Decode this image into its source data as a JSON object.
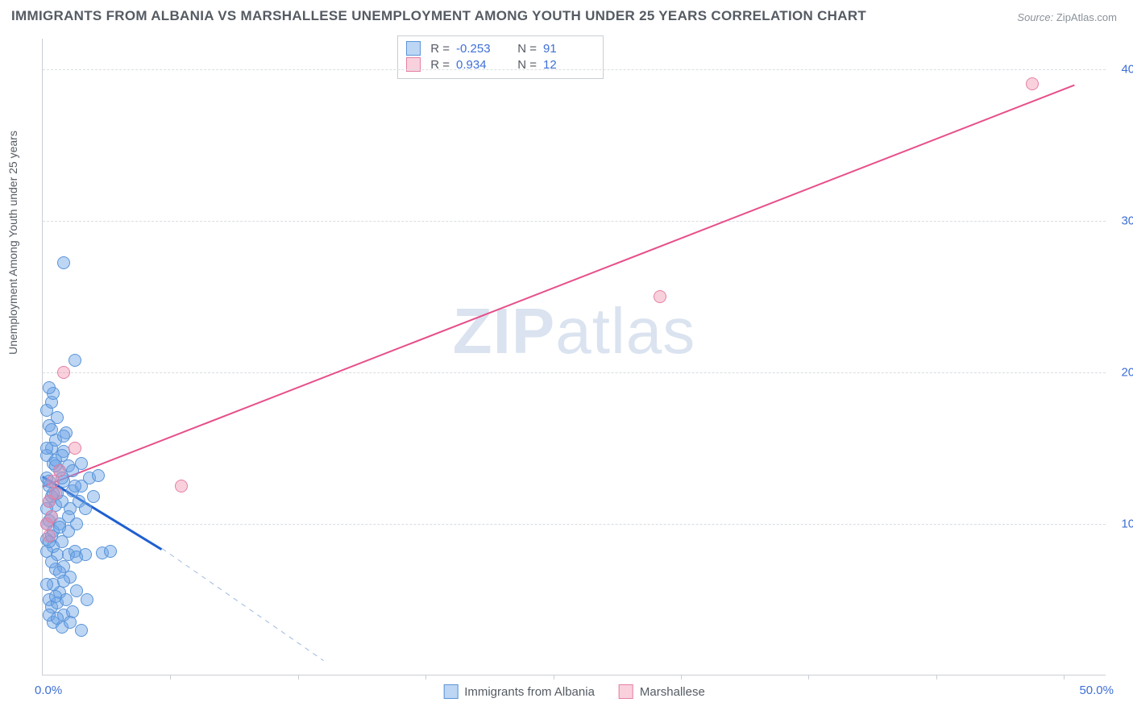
{
  "title": "IMMIGRANTS FROM ALBANIA VS MARSHALLESE UNEMPLOYMENT AMONG YOUTH UNDER 25 YEARS CORRELATION CHART",
  "source_label": "Source:",
  "source_name": "ZipAtlas.com",
  "ylabel": "Unemployment Among Youth under 25 years",
  "watermark_a": "ZIP",
  "watermark_b": "atlas",
  "chart": {
    "type": "scatter-correlation",
    "background_color": "#ffffff",
    "grid_color": "#d8dde2",
    "axis_color": "#c9ced4",
    "tick_color": "#3e6fd6",
    "xlim": [
      0,
      50
    ],
    "ylim": [
      0,
      42
    ],
    "y_ticks": [
      10,
      20,
      30,
      40
    ],
    "y_tick_labels": [
      "10.0%",
      "20.0%",
      "30.0%",
      "40.0%"
    ],
    "x_origin_label": "0.0%",
    "x_end_label": "50.0%",
    "x_minor_ticks": [
      6,
      12,
      18,
      24,
      30,
      36,
      42,
      48
    ],
    "series": [
      {
        "name": "Immigrants from Albania",
        "color_fill": "rgba(108,163,230,0.45)",
        "color_stroke": "#5a94d8",
        "R": "-0.253",
        "N": "91",
        "trend": {
          "x1": 0,
          "y1": 13.2,
          "x2": 5.6,
          "y2": 8.4,
          "color": "#1f5fd0",
          "width": 2.5,
          "dash": false
        },
        "trend_ext": {
          "x1": 5.6,
          "y1": 8.4,
          "x2": 13.2,
          "y2": 1.0,
          "color": "#9cb9e0",
          "width": 1.2,
          "dash": true
        },
        "points": [
          [
            0.2,
            13.0
          ],
          [
            0.3,
            12.5
          ],
          [
            0.4,
            11.8
          ],
          [
            0.5,
            14.0
          ],
          [
            0.3,
            10.2
          ],
          [
            0.6,
            11.2
          ],
          [
            0.8,
            13.5
          ],
          [
            0.4,
            15.0
          ],
          [
            0.2,
            9.0
          ],
          [
            0.5,
            8.5
          ],
          [
            0.7,
            8.0
          ],
          [
            1.0,
            14.8
          ],
          [
            1.2,
            13.8
          ],
          [
            1.4,
            12.2
          ],
          [
            0.9,
            11.5
          ],
          [
            0.3,
            16.5
          ],
          [
            0.2,
            17.5
          ],
          [
            0.4,
            18.0
          ],
          [
            0.5,
            18.6
          ],
          [
            0.3,
            19.0
          ],
          [
            1.8,
            14.0
          ],
          [
            2.2,
            13.0
          ],
          [
            2.6,
            13.2
          ],
          [
            1.5,
            8.2
          ],
          [
            2.0,
            8.0
          ],
          [
            2.8,
            8.1
          ],
          [
            3.2,
            8.2
          ],
          [
            0.6,
            7.0
          ],
          [
            1.0,
            7.2
          ],
          [
            1.3,
            6.5
          ],
          [
            0.8,
            5.5
          ],
          [
            1.6,
            5.6
          ],
          [
            2.1,
            5.0
          ],
          [
            1.0,
            4.0
          ],
          [
            1.4,
            4.2
          ],
          [
            0.5,
            3.5
          ],
          [
            0.9,
            3.2
          ],
          [
            1.8,
            3.0
          ],
          [
            1.2,
            9.5
          ],
          [
            1.6,
            10.0
          ],
          [
            0.2,
            11.0
          ],
          [
            0.7,
            12.0
          ],
          [
            0.3,
            12.8
          ],
          [
            0.6,
            13.8
          ],
          [
            0.9,
            14.5
          ],
          [
            1.1,
            16.0
          ],
          [
            0.4,
            10.5
          ],
          [
            0.8,
            10.0
          ],
          [
            1.3,
            11.0
          ],
          [
            1.7,
            11.5
          ],
          [
            2.4,
            11.8
          ],
          [
            0.2,
            8.2
          ],
          [
            0.5,
            6.0
          ],
          [
            0.3,
            5.0
          ],
          [
            0.4,
            4.5
          ],
          [
            0.7,
            4.8
          ],
          [
            1.5,
            20.8
          ],
          [
            1.0,
            27.2
          ],
          [
            0.2,
            14.5
          ],
          [
            0.6,
            15.5
          ],
          [
            1.0,
            12.8
          ],
          [
            1.4,
            13.5
          ],
          [
            1.8,
            12.5
          ],
          [
            0.3,
            8.8
          ],
          [
            0.5,
            9.5
          ],
          [
            0.9,
            8.8
          ],
          [
            1.2,
            8.0
          ],
          [
            1.6,
            7.8
          ],
          [
            0.4,
            7.5
          ],
          [
            0.8,
            6.8
          ],
          [
            1.0,
            6.2
          ],
          [
            0.2,
            6.0
          ],
          [
            0.6,
            5.2
          ],
          [
            1.1,
            5.0
          ],
          [
            0.3,
            4.0
          ],
          [
            0.7,
            3.8
          ],
          [
            1.3,
            3.5
          ],
          [
            0.5,
            12.0
          ],
          [
            0.9,
            13.0
          ],
          [
            1.5,
            12.5
          ],
          [
            2.0,
            11.0
          ],
          [
            0.2,
            10.0
          ],
          [
            0.4,
            9.2
          ],
          [
            0.8,
            9.8
          ],
          [
            1.2,
            10.5
          ],
          [
            0.3,
            11.5
          ],
          [
            0.6,
            14.2
          ],
          [
            1.0,
            15.8
          ],
          [
            0.4,
            16.2
          ],
          [
            0.2,
            15.0
          ],
          [
            0.7,
            17.0
          ]
        ]
      },
      {
        "name": "Marshallese",
        "color_fill": "rgba(240,140,170,0.4)",
        "color_stroke": "#e57fa3",
        "R": "0.934",
        "N": "12",
        "trend": {
          "x1": 0,
          "y1": 12.5,
          "x2": 48.5,
          "y2": 39.0,
          "color": "#e74f8a",
          "width": 2,
          "dash": false
        },
        "points": [
          [
            0.2,
            10.0
          ],
          [
            0.4,
            10.5
          ],
          [
            0.3,
            11.5
          ],
          [
            0.6,
            12.0
          ],
          [
            0.5,
            12.8
          ],
          [
            0.8,
            13.5
          ],
          [
            1.5,
            15.0
          ],
          [
            1.0,
            20.0
          ],
          [
            6.5,
            12.5
          ],
          [
            29.0,
            25.0
          ],
          [
            46.5,
            39.0
          ],
          [
            0.3,
            9.2
          ]
        ]
      }
    ]
  },
  "stats_legend": {
    "R_label": "R =",
    "N_label": "N ="
  },
  "bottom_legend": [
    "Immigrants from Albania",
    "Marshallese"
  ]
}
